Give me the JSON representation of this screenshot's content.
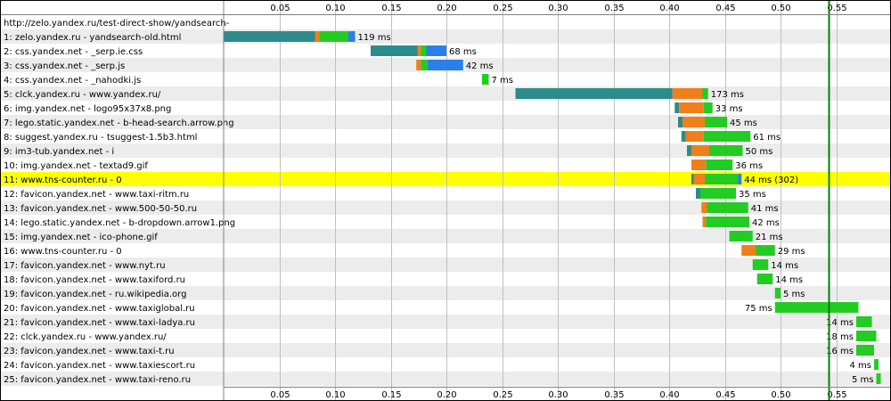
{
  "chart_data": {
    "type": "bar",
    "subtype": "waterfall",
    "page_url": "http://zelo.yandex.ru/test-direct-show/yandsearch-",
    "xlim": [
      0,
      0.59
    ],
    "x_ticks": [
      {
        "value": 0.05,
        "label": "0.05"
      },
      {
        "value": 0.1,
        "label": "0.10"
      },
      {
        "value": 0.15,
        "label": "0.15"
      },
      {
        "value": 0.2,
        "label": "0.20"
      },
      {
        "value": 0.25,
        "label": "0.25"
      },
      {
        "value": 0.3,
        "label": "0.30"
      },
      {
        "value": 0.35,
        "label": "0.35"
      },
      {
        "value": 0.4,
        "label": "0.40"
      },
      {
        "value": 0.45,
        "label": "0.45"
      },
      {
        "value": 0.5,
        "label": "0.50"
      },
      {
        "value": 0.55,
        "label": "0.55"
      }
    ],
    "grid": true,
    "marker_line": 0.543,
    "highlight_row": 10,
    "colors": {
      "dns": "#2e8b8b",
      "connect": "#ef7f1a",
      "ttfb": "#22cc22",
      "download": "#2b7fe8",
      "row_alt": "#ececec",
      "highlight": "#ffff00",
      "grid": "#c0c0c0",
      "marker": "#008000"
    },
    "requests": [
      {
        "label": "1: zelo.yandex.ru - yandsearch-old.html",
        "start": 0.0,
        "segments": [
          {
            "phase": "dns",
            "value": 0.082
          },
          {
            "phase": "connect",
            "value": 0.004
          },
          {
            "phase": "ttfb",
            "value": 0.026
          },
          {
            "phase": "download",
            "value": 0.006
          }
        ],
        "time_label": "119 ms"
      },
      {
        "label": "2: css.yandex.net - _serp.ie.css",
        "start": 0.132,
        "segments": [
          {
            "phase": "dns",
            "value": 0.042
          },
          {
            "phase": "connect",
            "value": 0.003
          },
          {
            "phase": "ttfb",
            "value": 0.005
          },
          {
            "phase": "download",
            "value": 0.018
          }
        ],
        "time_label": "68 ms"
      },
      {
        "label": "3: css.yandex.net - _serp.js",
        "start": 0.173,
        "segments": [
          {
            "phase": "connect",
            "value": 0.004
          },
          {
            "phase": "ttfb",
            "value": 0.006
          },
          {
            "phase": "download",
            "value": 0.032
          }
        ],
        "time_label": "42 ms"
      },
      {
        "label": "4: css.yandex.net - _nahodki.js",
        "start": 0.232,
        "segments": [
          {
            "phase": "ttfb",
            "value": 0.006
          }
        ],
        "time_label": "7 ms"
      },
      {
        "label": "5: clck.yandex.ru - www.yandex.ru/",
        "start": 0.262,
        "segments": [
          {
            "phase": "dns",
            "value": 0.141
          },
          {
            "phase": "connect",
            "value": 0.027
          },
          {
            "phase": "ttfb",
            "value": 0.005
          }
        ],
        "time_label": "173 ms"
      },
      {
        "label": "6: img.yandex.net - logo95x37x8.png",
        "start": 0.405,
        "segments": [
          {
            "phase": "dns",
            "value": 0.004
          },
          {
            "phase": "connect",
            "value": 0.022
          },
          {
            "phase": "ttfb",
            "value": 0.008
          }
        ],
        "time_label": "33 ms"
      },
      {
        "label": "7: lego.static.yandex.net - b-head-search.arrow.png",
        "start": 0.408,
        "segments": [
          {
            "phase": "dns",
            "value": 0.004
          },
          {
            "phase": "connect",
            "value": 0.02
          },
          {
            "phase": "ttfb",
            "value": 0.02
          }
        ],
        "time_label": "45 ms"
      },
      {
        "label": "8: suggest.yandex.ru - tsuggest-1.5b3.html",
        "start": 0.411,
        "segments": [
          {
            "phase": "dns",
            "value": 0.004
          },
          {
            "phase": "connect",
            "value": 0.016
          },
          {
            "phase": "ttfb",
            "value": 0.042
          }
        ],
        "time_label": "61 ms"
      },
      {
        "label": "9: im3-tub.yandex.net - i",
        "start": 0.416,
        "segments": [
          {
            "phase": "dns",
            "value": 0.004
          },
          {
            "phase": "connect",
            "value": 0.016
          },
          {
            "phase": "ttfb",
            "value": 0.03
          }
        ],
        "time_label": "50 ms"
      },
      {
        "label": "10: img.yandex.net - textad9.gif",
        "start": 0.42,
        "segments": [
          {
            "phase": "connect",
            "value": 0.013
          },
          {
            "phase": "ttfb",
            "value": 0.024
          }
        ],
        "time_label": "36 ms"
      },
      {
        "label": "11: www.tns-counter.ru - 0",
        "start": 0.42,
        "segments": [
          {
            "phase": "dns",
            "value": 0.002
          },
          {
            "phase": "connect",
            "value": 0.01
          },
          {
            "phase": "ttfb",
            "value": 0.03
          },
          {
            "phase": "download",
            "value": 0.003
          }
        ],
        "time_label": "44 ms (302)"
      },
      {
        "label": "12: favicon.yandex.net - www.taxi-ritm.ru",
        "start": 0.424,
        "segments": [
          {
            "phase": "dns",
            "value": 0.004
          },
          {
            "phase": "ttfb",
            "value": 0.032
          }
        ],
        "time_label": "35 ms"
      },
      {
        "label": "13: favicon.yandex.net - www.500-50-50.ru",
        "start": 0.429,
        "segments": [
          {
            "phase": "connect",
            "value": 0.005
          },
          {
            "phase": "ttfb",
            "value": 0.037
          }
        ],
        "time_label": "41 ms"
      },
      {
        "label": "14: lego.static.yandex.net - b-dropdown.arrow1.png",
        "start": 0.43,
        "segments": [
          {
            "phase": "connect",
            "value": 0.003
          },
          {
            "phase": "ttfb",
            "value": 0.039
          }
        ],
        "time_label": "42 ms"
      },
      {
        "label": "15: img.yandex.net - ico-phone.gif",
        "start": 0.454,
        "segments": [
          {
            "phase": "ttfb",
            "value": 0.021
          }
        ],
        "time_label": "21 ms"
      },
      {
        "label": "16: www.tns-counter.ru - 0",
        "start": 0.465,
        "segments": [
          {
            "phase": "connect",
            "value": 0.013
          },
          {
            "phase": "ttfb",
            "value": 0.017
          }
        ],
        "time_label": "29 ms"
      },
      {
        "label": "17: favicon.yandex.net - www.nyt.ru",
        "start": 0.475,
        "segments": [
          {
            "phase": "ttfb",
            "value": 0.014
          }
        ],
        "time_label": "14 ms"
      },
      {
        "label": "18: favicon.yandex.net - www.taxiford.ru",
        "start": 0.479,
        "segments": [
          {
            "phase": "ttfb",
            "value": 0.014
          }
        ],
        "time_label": "14 ms"
      },
      {
        "label": "19: favicon.yandex.net - ru.wikipedia.org",
        "start": 0.495,
        "segments": [
          {
            "phase": "ttfb",
            "value": 0.005
          }
        ],
        "time_label": "5 ms"
      },
      {
        "label": "20: favicon.yandex.net - www.taxiglobal.ru",
        "start": 0.495,
        "segments": [
          {
            "phase": "ttfb",
            "value": 0.075
          }
        ],
        "time_label": "75 ms"
      },
      {
        "label": "21: favicon.yandex.net - www.taxi-ladya.ru",
        "start": 0.568,
        "segments": [
          {
            "phase": "ttfb",
            "value": 0.014
          }
        ],
        "time_label": "14 ms"
      },
      {
        "label": "22: clck.yandex.ru - www.yandex.ru/",
        "start": 0.568,
        "segments": [
          {
            "phase": "ttfb",
            "value": 0.018
          }
        ],
        "time_label": "18 ms"
      },
      {
        "label": "23: favicon.yandex.net - www.taxi-t.ru",
        "start": 0.568,
        "segments": [
          {
            "phase": "ttfb",
            "value": 0.016
          }
        ],
        "time_label": "16 ms"
      },
      {
        "label": "24: favicon.yandex.net - www.taxiescort.ru",
        "start": 0.584,
        "segments": [
          {
            "phase": "ttfb",
            "value": 0.004
          }
        ],
        "time_label": "4 ms"
      },
      {
        "label": "25: favicon.yandex.net - www.taxi-reno.ru",
        "start": 0.586,
        "segments": [
          {
            "phase": "ttfb",
            "value": 0.004
          }
        ],
        "time_label": "5 ms"
      }
    ]
  }
}
